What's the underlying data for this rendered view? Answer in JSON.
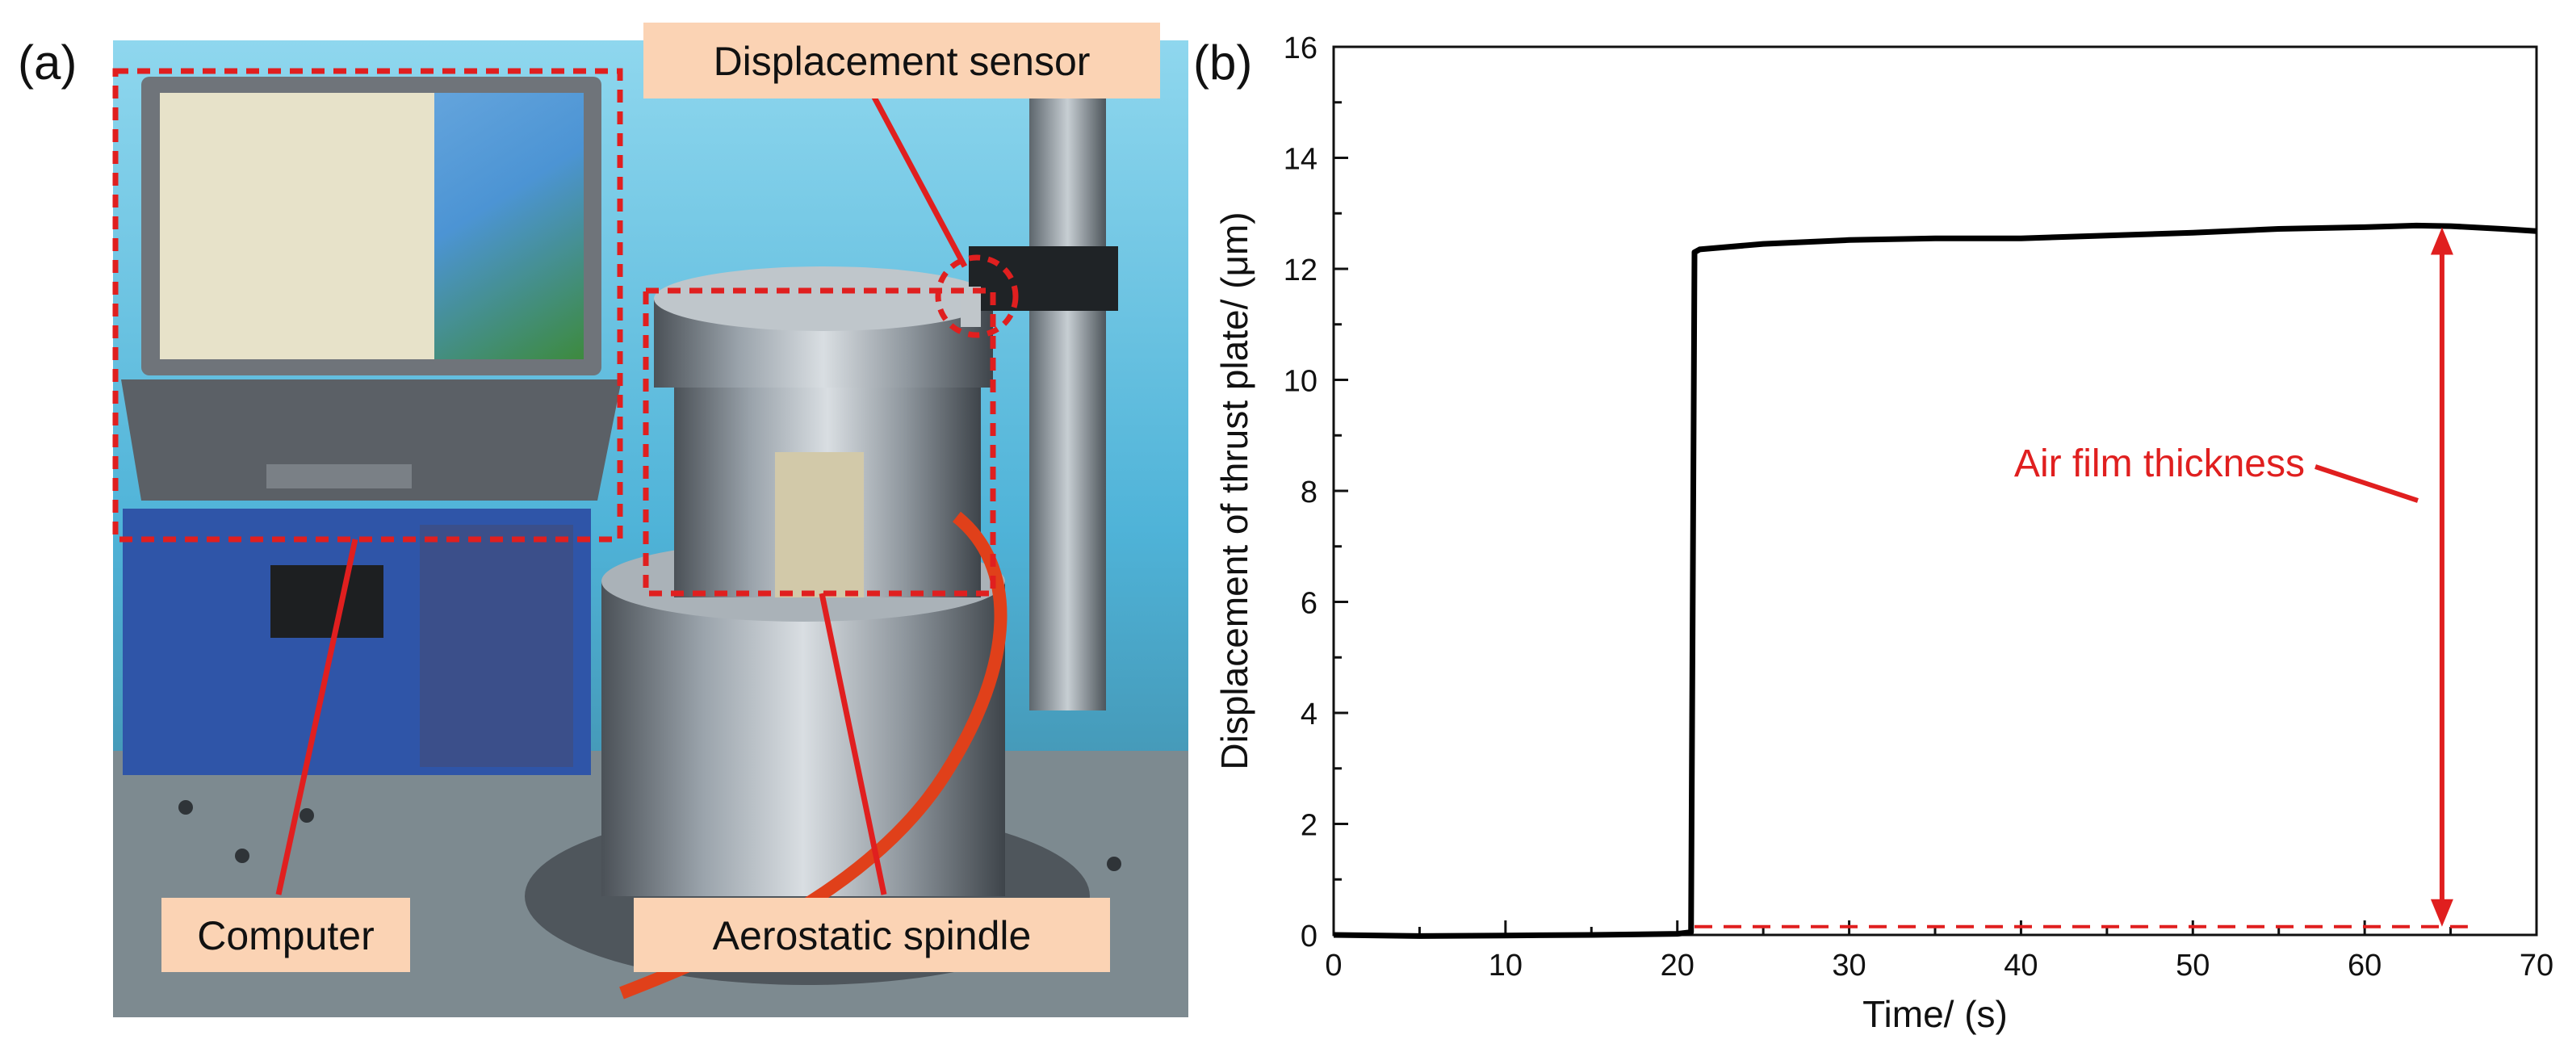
{
  "panels": {
    "a": {
      "letter": "(a)"
    },
    "b": {
      "letter": "(b)"
    }
  },
  "photo": {
    "callouts": {
      "displacement_sensor": "Displacement sensor",
      "computer": "Computer",
      "aerostatic_spindle": "Aerostatic spindle"
    },
    "callout_box_color": "#fbd3b4",
    "marker_color": "#e01f1f"
  },
  "chart_data": {
    "type": "line",
    "xlabel": "Time/ (s)",
    "ylabel": "Displacement of thrust plate/ (μm)",
    "xlim": [
      0,
      70
    ],
    "ylim": [
      0,
      16
    ],
    "xticks": [
      0,
      10,
      20,
      30,
      40,
      50,
      60,
      70
    ],
    "yticks": [
      0,
      2,
      4,
      6,
      8,
      10,
      12,
      14,
      16
    ],
    "grid": false,
    "series": [
      {
        "color": "#000000",
        "style": "solid",
        "x": [
          0,
          5,
          10,
          15,
          20,
          20.8,
          21.0,
          21.3,
          25,
          30,
          35,
          40,
          45,
          50,
          55,
          60,
          63,
          65,
          68,
          70
        ],
        "y": [
          0.0,
          -0.02,
          -0.01,
          0.0,
          0.02,
          0.05,
          12.3,
          12.35,
          12.45,
          12.52,
          12.55,
          12.55,
          12.6,
          12.65,
          12.72,
          12.75,
          12.78,
          12.77,
          12.72,
          12.68
        ]
      },
      {
        "color": "#e01f1f",
        "style": "dashed",
        "x": [
          21,
          66
        ],
        "y": [
          0.15,
          0.15
        ]
      }
    ],
    "annotations": [
      {
        "text": "Air film thickness",
        "arrow": {
          "x": 64.5,
          "y_from": 0.15,
          "y_to": 12.75
        }
      }
    ]
  }
}
